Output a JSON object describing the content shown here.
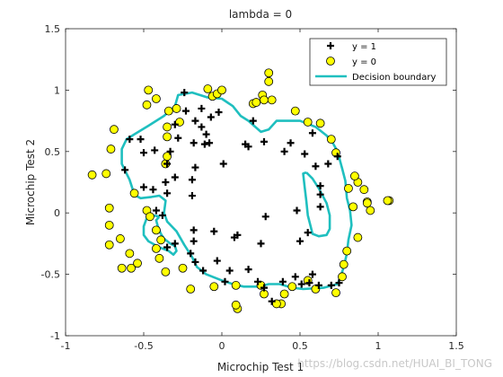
{
  "chart_data": {
    "type": "scatter",
    "title": "lambda = 0",
    "xlabel": "Microchip Test 1",
    "ylabel": "Microchip Test 2",
    "xlim": [
      -1,
      1.5
    ],
    "ylim": [
      -1,
      1.5
    ],
    "xticks": [
      "-1",
      "-0.5",
      "0",
      "0.5",
      "1",
      "1.5"
    ],
    "yticks": [
      "-1",
      "-0.5",
      "0",
      "0.5",
      "1",
      "1.5"
    ],
    "legend_position": "top-right",
    "series": [
      {
        "name": "y = 1",
        "marker": "plus",
        "color": "#000000",
        "points": [
          [
            -0.59,
            0.6
          ],
          [
            -0.52,
            0.6
          ],
          [
            -0.62,
            0.35
          ],
          [
            -0.5,
            0.49
          ],
          [
            -0.43,
            0.51
          ],
          [
            -0.33,
            0.5
          ],
          [
            -0.35,
            0.4
          ],
          [
            -0.36,
            0.25
          ],
          [
            -0.5,
            0.21
          ],
          [
            -0.44,
            0.19
          ],
          [
            -0.35,
            0.16
          ],
          [
            -0.3,
            0.29
          ],
          [
            -0.19,
            0.27
          ],
          [
            -0.18,
            0.57
          ],
          [
            -0.28,
            0.61
          ],
          [
            -0.3,
            0.72
          ],
          [
            -0.17,
            0.75
          ],
          [
            -0.13,
            0.7
          ],
          [
            -0.1,
            0.64
          ],
          [
            -0.08,
            0.57
          ],
          [
            -0.07,
            0.78
          ],
          [
            -0.02,
            0.82
          ],
          [
            -0.23,
            0.83
          ],
          [
            -0.13,
            0.85
          ],
          [
            -0.11,
            0.56
          ],
          [
            -0.24,
            0.98
          ],
          [
            -0.17,
            0.37
          ],
          [
            0.01,
            0.4
          ],
          [
            0.15,
            0.56
          ],
          [
            0.17,
            0.54
          ],
          [
            0.2,
            0.75
          ],
          [
            0.27,
            0.58
          ],
          [
            0.44,
            0.57
          ],
          [
            0.4,
            0.5
          ],
          [
            0.53,
            0.48
          ],
          [
            0.6,
            0.38
          ],
          [
            0.68,
            0.4
          ],
          [
            0.74,
            0.46
          ],
          [
            0.63,
            0.22
          ],
          [
            0.63,
            0.15
          ],
          [
            0.63,
            0.05
          ],
          [
            0.48,
            0.02
          ],
          [
            0.28,
            -0.03
          ],
          [
            0.1,
            -0.18
          ],
          [
            0.08,
            -0.2
          ],
          [
            0.25,
            -0.25
          ],
          [
            0.5,
            -0.23
          ],
          [
            0.55,
            -0.16
          ],
          [
            -0.05,
            -0.15
          ],
          [
            -0.18,
            -0.23
          ],
          [
            -0.2,
            -0.33
          ],
          [
            -0.3,
            -0.25
          ],
          [
            -0.35,
            -0.28
          ],
          [
            -0.17,
            -0.4
          ],
          [
            -0.12,
            -0.47
          ],
          [
            -0.03,
            -0.39
          ],
          [
            0.05,
            -0.47
          ],
          [
            0.02,
            -0.56
          ],
          [
            0.17,
            -0.46
          ],
          [
            0.23,
            -0.56
          ],
          [
            0.27,
            -0.61
          ],
          [
            0.32,
            -0.72
          ],
          [
            0.39,
            -0.56
          ],
          [
            0.47,
            -0.52
          ],
          [
            0.51,
            -0.58
          ],
          [
            0.56,
            -0.57
          ],
          [
            0.58,
            -0.5
          ],
          [
            0.62,
            -0.59
          ],
          [
            0.7,
            -0.59
          ],
          [
            0.75,
            -0.57
          ],
          [
            -0.42,
            0.02
          ],
          [
            -0.38,
            -0.02
          ],
          [
            -0.19,
            0.14
          ],
          [
            -0.18,
            -0.14
          ],
          [
            0.58,
            0.65
          ]
        ]
      },
      {
        "name": "y = 0",
        "marker": "circle",
        "color": "#ffff00",
        "points": [
          [
            -0.83,
            0.31
          ],
          [
            -0.74,
            0.32
          ],
          [
            -0.71,
            0.52
          ],
          [
            -0.69,
            0.68
          ],
          [
            -0.72,
            0.04
          ],
          [
            -0.72,
            -0.1
          ],
          [
            -0.72,
            -0.26
          ],
          [
            -0.65,
            -0.21
          ],
          [
            -0.59,
            -0.33
          ],
          [
            -0.58,
            -0.45
          ],
          [
            -0.56,
            0.16
          ],
          [
            -0.48,
            0.02
          ],
          [
            -0.46,
            -0.03
          ],
          [
            -0.42,
            -0.29
          ],
          [
            -0.42,
            -0.14
          ],
          [
            -0.39,
            -0.22
          ],
          [
            -0.36,
            -0.48
          ],
          [
            -0.36,
            0.4
          ],
          [
            -0.35,
            0.46
          ],
          [
            -0.35,
            0.62
          ],
          [
            -0.35,
            0.7
          ],
          [
            -0.34,
            0.83
          ],
          [
            -0.48,
            0.88
          ],
          [
            -0.47,
            1.0
          ],
          [
            -0.42,
            0.93
          ],
          [
            -0.29,
            0.85
          ],
          [
            -0.27,
            0.74
          ],
          [
            -0.09,
            1.01
          ],
          [
            -0.06,
            0.95
          ],
          [
            -0.03,
            0.97
          ],
          [
            0.0,
            1.0
          ],
          [
            0.2,
            0.89
          ],
          [
            0.22,
            0.9
          ],
          [
            0.26,
            0.96
          ],
          [
            0.3,
            1.07
          ],
          [
            0.3,
            1.14
          ],
          [
            0.27,
            0.92
          ],
          [
            0.47,
            0.83
          ],
          [
            0.55,
            0.74
          ],
          [
            0.63,
            0.73
          ],
          [
            0.7,
            0.6
          ],
          [
            0.73,
            0.49
          ],
          [
            0.81,
            0.2
          ],
          [
            0.84,
            0.05
          ],
          [
            0.87,
            0.25
          ],
          [
            0.93,
            0.09
          ],
          [
            0.91,
            0.19
          ],
          [
            0.93,
            0.08
          ],
          [
            0.95,
            0.02
          ],
          [
            1.07,
            0.1
          ],
          [
            0.87,
            -0.2
          ],
          [
            0.8,
            -0.31
          ],
          [
            0.78,
            -0.42
          ],
          [
            0.77,
            -0.52
          ],
          [
            0.73,
            -0.65
          ],
          [
            0.6,
            -0.62
          ],
          [
            0.55,
            -0.55
          ],
          [
            0.45,
            -0.6
          ],
          [
            0.4,
            -0.66
          ],
          [
            0.38,
            -0.74
          ],
          [
            0.27,
            -0.66
          ],
          [
            0.25,
            -0.59
          ],
          [
            0.09,
            -0.59
          ],
          [
            0.1,
            -0.78
          ],
          [
            0.09,
            -0.75
          ],
          [
            -0.05,
            -0.6
          ],
          [
            -0.2,
            -0.62
          ],
          [
            -0.25,
            -0.45
          ],
          [
            -0.4,
            -0.37
          ],
          [
            -0.54,
            -0.41
          ],
          [
            -0.64,
            -0.45
          ],
          [
            1.06,
            0.1
          ],
          [
            0.85,
            0.3
          ],
          [
            0.32,
            0.92
          ],
          [
            0.35,
            -0.74
          ]
        ]
      },
      {
        "name": "Decision boundary",
        "type": "contour",
        "color": "#1fbfbf",
        "paths": [
          [
            [
              -0.56,
              0.64
            ],
            [
              -0.47,
              0.71
            ],
            [
              -0.37,
              0.79
            ],
            [
              -0.3,
              0.87
            ],
            [
              -0.28,
              0.96
            ],
            [
              -0.19,
              0.98
            ],
            [
              -0.09,
              0.94
            ],
            [
              0.0,
              0.93
            ],
            [
              0.07,
              0.87
            ],
            [
              0.12,
              0.79
            ],
            [
              0.17,
              0.75
            ],
            [
              0.25,
              0.66
            ],
            [
              0.3,
              0.68
            ],
            [
              0.35,
              0.75
            ],
            [
              0.5,
              0.75
            ],
            [
              0.6,
              0.7
            ],
            [
              0.67,
              0.63
            ],
            [
              0.71,
              0.57
            ],
            [
              0.74,
              0.5
            ],
            [
              0.77,
              0.36
            ],
            [
              0.79,
              0.26
            ],
            [
              0.8,
              0.12
            ],
            [
              0.82,
              0.02
            ],
            [
              0.83,
              -0.1
            ],
            [
              0.81,
              -0.22
            ],
            [
              0.8,
              -0.33
            ],
            [
              0.78,
              -0.44
            ],
            [
              0.76,
              -0.52
            ],
            [
              0.74,
              -0.58
            ],
            [
              0.65,
              -0.61
            ],
            [
              0.52,
              -0.62
            ],
            [
              0.45,
              -0.61
            ],
            [
              0.37,
              -0.58
            ],
            [
              0.3,
              -0.58
            ],
            [
              0.24,
              -0.6
            ],
            [
              0.14,
              -0.6
            ],
            [
              0.07,
              -0.58
            ],
            [
              0.0,
              -0.55
            ],
            [
              -0.1,
              -0.5
            ],
            [
              -0.16,
              -0.44
            ],
            [
              -0.19,
              -0.36
            ],
            [
              -0.24,
              -0.26
            ],
            [
              -0.29,
              -0.15
            ],
            [
              -0.35,
              -0.07
            ],
            [
              -0.37,
              -0.0
            ],
            [
              -0.36,
              0.1
            ],
            [
              -0.4,
              0.14
            ],
            [
              -0.45,
              0.13
            ],
            [
              -0.52,
              0.12
            ],
            [
              -0.55,
              0.14
            ],
            [
              -0.57,
              0.19
            ],
            [
              -0.59,
              0.27
            ],
            [
              -0.64,
              0.4
            ],
            [
              -0.64,
              0.52
            ],
            [
              -0.61,
              0.6
            ],
            [
              -0.56,
              0.64
            ]
          ],
          [
            [
              -0.4,
              -0.03
            ],
            [
              -0.42,
              -0.06
            ],
            [
              -0.41,
              -0.11
            ],
            [
              -0.39,
              -0.17
            ],
            [
              -0.37,
              -0.21
            ],
            [
              -0.33,
              -0.25
            ],
            [
              -0.3,
              -0.27
            ],
            [
              -0.29,
              -0.31
            ],
            [
              -0.31,
              -0.34
            ],
            [
              -0.34,
              -0.31
            ],
            [
              -0.4,
              -0.28
            ],
            [
              -0.47,
              -0.23
            ],
            [
              -0.5,
              -0.18
            ],
            [
              -0.5,
              -0.11
            ],
            [
              -0.48,
              -0.04
            ],
            [
              -0.44,
              -0.02
            ],
            [
              -0.4,
              -0.03
            ]
          ],
          [
            [
              0.54,
              0.33
            ],
            [
              0.58,
              0.28
            ],
            [
              0.62,
              0.2
            ],
            [
              0.67,
              0.08
            ],
            [
              0.69,
              -0.02
            ],
            [
              0.69,
              -0.13
            ],
            [
              0.67,
              -0.18
            ],
            [
              0.62,
              -0.19
            ],
            [
              0.58,
              -0.17
            ],
            [
              0.57,
              -0.12
            ],
            [
              0.55,
              -0.02
            ],
            [
              0.54,
              0.1
            ],
            [
              0.53,
              0.21
            ],
            [
              0.52,
              0.32
            ],
            [
              0.54,
              0.33
            ]
          ]
        ]
      }
    ]
  },
  "watermark": "https://blog.csdn.net/HUAI_BI_TONG"
}
